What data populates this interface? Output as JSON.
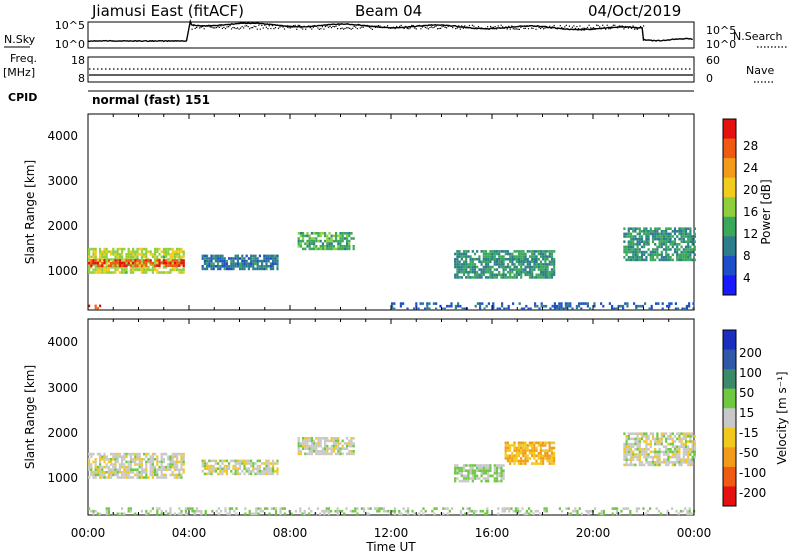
{
  "header": {
    "station": "Jiamusi East (fitACF)",
    "beam": "Beam 04",
    "date": "04/Oct/2019"
  },
  "nsky": {
    "label": "N.Sky",
    "tick_high": "10^5",
    "tick_low": "10^0",
    "right_tick_high": "10^5",
    "right_tick_low": "10^0",
    "right_label": "N.Search"
  },
  "freq": {
    "label_top": "Freq.",
    "label_unit": "[MHz]",
    "tick_high": "18",
    "tick_low": "8",
    "right_tick_high": "60",
    "right_tick_low": "0",
    "right_label": "Nave"
  },
  "cpid": {
    "label": "CPID",
    "text": "normal (fast) 151"
  },
  "power_panel": {
    "ylabel": "Slant Range [km]",
    "yticks": [
      "4000",
      "3000",
      "2000",
      "1000"
    ],
    "colorbar_label": "Power [dB]",
    "colorbar_ticks": [
      "28",
      "24",
      "20",
      "16",
      "12",
      "8",
      "4"
    ],
    "colors": [
      "#1a1aff",
      "#1f4fc8",
      "#2e7d8c",
      "#3aa85a",
      "#8fcf3c",
      "#f2cc1c",
      "#f29a1a",
      "#ee5a12",
      "#e51010"
    ]
  },
  "velocity_panel": {
    "ylabel": "Slant Range [km]",
    "yticks": [
      "4000",
      "3000",
      "2000",
      "1000"
    ],
    "colorbar_label": "Velocity [m s⁻¹]",
    "colorbar_ticks": [
      "200",
      "100",
      "50",
      "15",
      "-15",
      "-50",
      "-100",
      "-200"
    ],
    "colors": [
      "#1a2fc0",
      "#3058a8",
      "#3a8a6a",
      "#6ec840",
      "#c8c8c8",
      "#f2c81c",
      "#f29a1a",
      "#f05a12",
      "#e51010"
    ]
  },
  "xaxis": {
    "label": "Time UT",
    "ticks": [
      "00:00",
      "04:00",
      "08:00",
      "12:00",
      "16:00",
      "20:00",
      "00:00"
    ]
  },
  "chart_data": {
    "type": "heatmap",
    "title": "Jiamusi East (fitACF)  Beam 04  04/Oct/2019",
    "xlabel": "Time UT",
    "ylabel": "Slant Range [km]",
    "xlim_hours": [
      0,
      24
    ],
    "ylim_km": [
      180,
      4500
    ],
    "panels": [
      {
        "name": "Power",
        "unit": "dB",
        "color_range": [
          0,
          30
        ],
        "echo_regions": [
          {
            "t_start": 0.0,
            "t_end": 3.8,
            "range_start_km": 1000,
            "range_end_km": 1550,
            "value": 16
          },
          {
            "t_start": 0.0,
            "t_end": 3.8,
            "range_start_km": 1150,
            "range_end_km": 1300,
            "value": 26
          },
          {
            "t_start": 0.0,
            "t_end": 0.5,
            "range_start_km": 190,
            "range_end_km": 300,
            "value": 28
          },
          {
            "t_start": 4.5,
            "t_end": 7.5,
            "range_start_km": 1100,
            "range_end_km": 1400,
            "value": 8
          },
          {
            "t_start": 8.3,
            "t_end": 10.5,
            "range_start_km": 1550,
            "range_end_km": 1900,
            "value": 12
          },
          {
            "t_start": 14.5,
            "t_end": 18.5,
            "range_start_km": 900,
            "range_end_km": 1500,
            "value": 10
          },
          {
            "t_start": 21.2,
            "t_end": 24.0,
            "range_start_km": 1300,
            "range_end_km": 2000,
            "value": 10
          },
          {
            "t_start": 12.0,
            "t_end": 24.0,
            "range_start_km": 190,
            "range_end_km": 350,
            "value": 6
          }
        ]
      },
      {
        "name": "Velocity",
        "unit": "m s^-1",
        "color_range": [
          -250,
          250
        ],
        "echo_regions": [
          {
            "t_start": 0.0,
            "t_end": 3.8,
            "range_start_km": 1000,
            "range_end_km": 1550,
            "value": 0
          },
          {
            "t_start": 4.5,
            "t_end": 7.5,
            "range_start_km": 1100,
            "range_end_km": 1400,
            "value": 0
          },
          {
            "t_start": 8.3,
            "t_end": 10.5,
            "range_start_km": 1550,
            "range_end_km": 1900,
            "value": 0
          },
          {
            "t_start": 14.5,
            "t_end": 16.5,
            "range_start_km": 900,
            "range_end_km": 1300,
            "value": 30
          },
          {
            "t_start": 16.5,
            "t_end": 18.5,
            "range_start_km": 1300,
            "range_end_km": 1800,
            "value": -80
          },
          {
            "t_start": 21.2,
            "t_end": 24.0,
            "range_start_km": 1300,
            "range_end_km": 2000,
            "value": 0
          },
          {
            "t_start": 0.0,
            "t_end": 24.0,
            "range_start_km": 190,
            "range_end_km": 350,
            "value": 20
          }
        ]
      }
    ],
    "nsky_log_range": [
      0,
      5
    ],
    "frequency_mhz_range": [
      8,
      18
    ],
    "nave_range": [
      0,
      60
    ],
    "cpid": 151
  }
}
